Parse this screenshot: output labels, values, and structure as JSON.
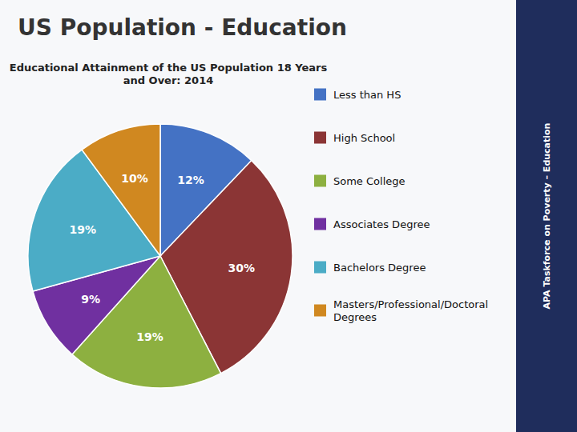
{
  "chart_data": {
    "type": "pie",
    "title": "US Population - Education",
    "subtitle": "Educational Attainment of the US Population 18 Years\nand Over: 2014",
    "categories": [
      "Less than HS",
      "High School",
      "Some College",
      "Associates Degree",
      "Bachelors Degree",
      "Masters/Professional/Doctoral\nDegrees"
    ],
    "values": [
      12,
      30,
      19,
      9,
      19,
      10
    ],
    "value_labels": [
      "12%",
      "30%",
      "19%",
      "9%",
      "19%",
      "10%"
    ],
    "colors": [
      "#4472c4",
      "#8b3535",
      "#8db040",
      "#7030a0",
      "#4bacc6",
      "#d08820"
    ],
    "data_labels": true,
    "legend": "right",
    "annotations": [
      "APA Taskforce on Poverty – Education"
    ]
  }
}
